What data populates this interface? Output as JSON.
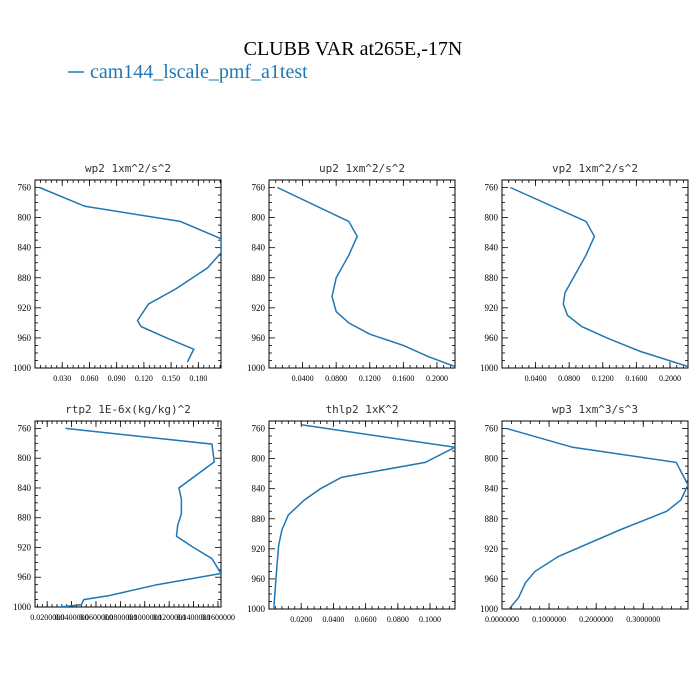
{
  "title": "CLUBB VAR at265E,-17N",
  "legend": {
    "label": "cam144_lscale_pmf_a1test",
    "color": "#1f77b4"
  },
  "chart_data": [
    {
      "type": "line",
      "title": "wp2   1xm^2/s^2",
      "xlim": [
        0.0,
        0.205
      ],
      "ylim": [
        1000,
        750
      ],
      "xticks": [
        0.03,
        0.06,
        0.09,
        0.12,
        0.15,
        0.18
      ],
      "xtick_labels": [
        "0.030",
        "0.060",
        "0.090",
        "0.120",
        "0.150",
        "0.180"
      ],
      "yticks": [
        760,
        800,
        840,
        880,
        920,
        960,
        1000
      ],
      "series": [
        {
          "x": [
            0.005,
            0.055,
            0.16,
            0.205,
            0.205,
            0.19,
            0.155,
            0.125,
            0.113,
            0.117,
            0.145,
            0.175,
            0.168
          ],
          "y": [
            760,
            785,
            805,
            828,
            847,
            867,
            895,
            915,
            937,
            945,
            960,
            975,
            992
          ]
        }
      ]
    },
    {
      "type": "line",
      "title": "up2   1xm^2/s^2",
      "xlim": [
        0.0,
        0.2215
      ],
      "ylim": [
        1000,
        750
      ],
      "xticks": [
        0.04,
        0.08,
        0.12,
        0.16,
        0.2
      ],
      "xtick_labels": [
        "0.0400",
        "0.0800",
        "0.1200",
        "0.1600",
        "0.2000"
      ],
      "yticks": [
        760,
        800,
        840,
        880,
        920,
        960,
        1000
      ],
      "series": [
        {
          "x": [
            0.01,
            0.095,
            0.105,
            0.095,
            0.08,
            0.075,
            0.08,
            0.095,
            0.12,
            0.16,
            0.19,
            0.2215
          ],
          "y": [
            760,
            805,
            825,
            850,
            880,
            905,
            925,
            940,
            955,
            970,
            985,
            998
          ]
        }
      ]
    },
    {
      "type": "line",
      "title": "vp2   1xm^2/s^2",
      "xlim": [
        0.0,
        0.2215
      ],
      "ylim": [
        1000,
        750
      ],
      "xticks": [
        0.04,
        0.08,
        0.12,
        0.16,
        0.2
      ],
      "xtick_labels": [
        "0.0400",
        "0.0800",
        "0.1200",
        "0.1600",
        "0.2000"
      ],
      "yticks": [
        760,
        800,
        840,
        880,
        920,
        960,
        1000
      ],
      "series": [
        {
          "x": [
            0.01,
            0.1,
            0.11,
            0.1,
            0.085,
            0.075,
            0.073,
            0.078,
            0.095,
            0.125,
            0.165,
            0.2215
          ],
          "y": [
            760,
            805,
            825,
            850,
            880,
            900,
            915,
            930,
            945,
            960,
            978,
            998
          ]
        }
      ]
    },
    {
      "type": "line",
      "title": "rtp2   1E-6x(kg/kg)^2",
      "xlim": [
        0.01,
        0.1625
      ],
      "ylim": [
        1000,
        750
      ],
      "xticks": [
        0.02,
        0.04,
        0.06,
        0.08,
        0.1,
        0.12,
        0.14,
        0.16
      ],
      "xtick_labels": [
        "0.0200000",
        "0.0400000",
        "0.0600000",
        "0.0800000",
        "0.1000000",
        "0.1200000",
        "0.1400000",
        "0.1600000"
      ],
      "yticks": [
        760,
        800,
        840,
        880,
        920,
        960,
        1000
      ],
      "series": [
        {
          "x": [
            0.035,
            0.155,
            0.157,
            0.128,
            0.13,
            0.13,
            0.127,
            0.126,
            0.14,
            0.155,
            0.1625,
            0.11,
            0.07,
            0.05,
            0.048,
            0.03
          ],
          "y": [
            760,
            781,
            805,
            840,
            855,
            875,
            890,
            905,
            920,
            935,
            955,
            970,
            985,
            990,
            997,
            1000
          ]
        }
      ]
    },
    {
      "type": "line",
      "title": "thlp2   1xK^2",
      "xlim": [
        0.0,
        0.1155
      ],
      "ylim": [
        1000,
        750
      ],
      "xticks": [
        0.02,
        0.04,
        0.06,
        0.08,
        0.1
      ],
      "xtick_labels": [
        "0.0200",
        "0.0400",
        "0.0600",
        "0.0800",
        "0.1000"
      ],
      "yticks": [
        760,
        800,
        840,
        880,
        920,
        960,
        1000
      ],
      "series": [
        {
          "x": [
            0.02,
            0.1155,
            0.097,
            0.045,
            0.032,
            0.022,
            0.012,
            0.008,
            0.006,
            0.005,
            0.004,
            0.003
          ],
          "y": [
            755,
            785,
            805,
            825,
            840,
            855,
            875,
            895,
            915,
            940,
            970,
            1000
          ]
        }
      ]
    },
    {
      "type": "line",
      "title": "wp3   1xm^3/s^3",
      "xlim": [
        0.0,
        0.395
      ],
      "ylim": [
        1000,
        750
      ],
      "xticks": [
        0.0,
        0.1,
        0.2,
        0.3
      ],
      "xtick_labels": [
        "0.0000000",
        "0.1000000",
        "0.2000000",
        "0.3000000"
      ],
      "yticks": [
        760,
        800,
        840,
        880,
        920,
        960,
        1000
      ],
      "series": [
        {
          "x": [
            0.01,
            0.15,
            0.37,
            0.395,
            0.38,
            0.35,
            0.25,
            0.12,
            0.07,
            0.05,
            0.035,
            0.015
          ],
          "y": [
            760,
            785,
            805,
            835,
            855,
            870,
            895,
            930,
            950,
            965,
            985,
            1000
          ]
        }
      ]
    }
  ]
}
